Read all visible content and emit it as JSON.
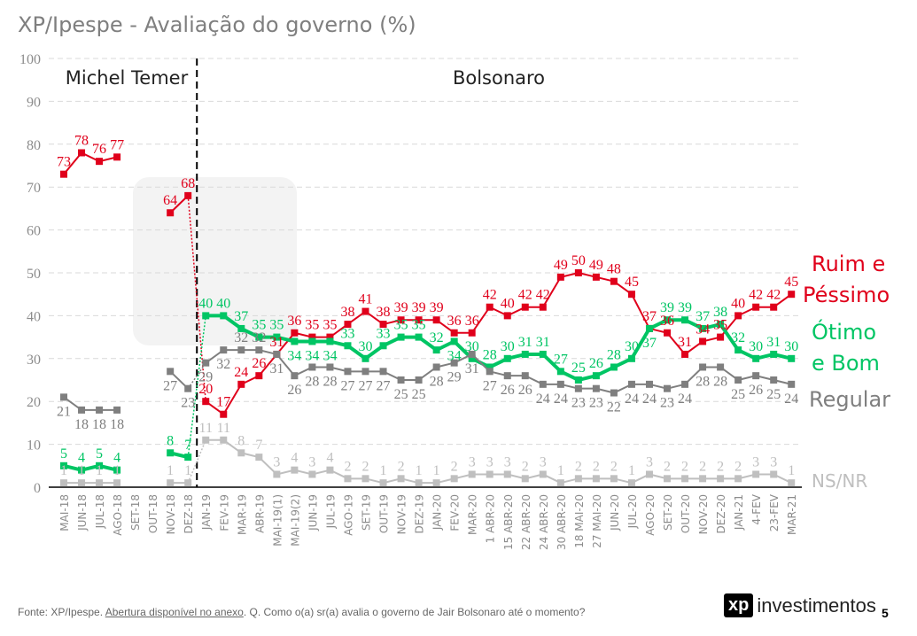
{
  "title": "XP/Ipespe - Avaliação do governo (%)",
  "footer": {
    "source": "Fonte: XP/Ipespe.",
    "link": "Abertura disponível no anexo",
    "question": ". Q. Como o(a) sr(a) avalia o governo de Jair Bolsonaro até o momento?"
  },
  "logo": {
    "mark": "xp",
    "text": "investimentos"
  },
  "watermark": "xp investimentos",
  "page_number": "5",
  "chart_data": {
    "type": "line",
    "ylim": [
      0,
      100
    ],
    "yticks": [
      0,
      10,
      20,
      30,
      40,
      50,
      60,
      70,
      80,
      90,
      100
    ],
    "grid": true,
    "legend_placement": "right",
    "annotations": [
      "Michel Temer",
      "Bolsonaro"
    ],
    "categories": [
      "MAI-18",
      "JUN-18",
      "JUL-18",
      "AGO-18",
      "SET-18",
      "OUT-18",
      "NOV-18",
      "DEZ-18",
      "JAN-19",
      "FEV-19",
      "MAR-19",
      "ABR-19",
      "MAI-19(1)",
      "MAI-19(2)",
      "JUN-19",
      "JUL-19",
      "AGO-19",
      "SET-19",
      "OUT-19",
      "NOV-19",
      "DEZ-19",
      "JAN-20",
      "FEV-20",
      "MAR-20",
      "1 ABR-20",
      "15 ABR-20",
      "22 ABR-20",
      "24 ABR-20",
      "30 ABR-20",
      "18 MAI-20",
      "27 MAI-20",
      "JUN-20",
      "JUL-20",
      "AGO-20",
      "SET-20",
      "OUT-20",
      "NOV-20",
      "DEZ-20",
      "JAN-21",
      "4-FEV",
      "23-FEV",
      "MAR-21"
    ],
    "series": [
      {
        "name": "Ruim e Péssimo",
        "color": "#e0001b",
        "values": [
          73,
          78,
          76,
          77,
          null,
          null,
          64,
          68,
          20,
          17,
          24,
          26,
          31,
          36,
          35,
          35,
          38,
          41,
          38,
          39,
          39,
          39,
          36,
          36,
          42,
          40,
          42,
          42,
          49,
          50,
          49,
          48,
          45,
          37,
          36,
          31,
          34,
          35,
          40,
          42,
          42,
          45
        ]
      },
      {
        "name": "Ótimo e Bom",
        "color": "#00c564",
        "values": [
          5,
          4,
          5,
          4,
          null,
          null,
          8,
          7,
          40,
          40,
          37,
          35,
          35,
          34,
          34,
          34,
          33,
          30,
          33,
          35,
          35,
          32,
          34,
          30,
          28,
          30,
          31,
          31,
          27,
          25,
          26,
          28,
          30,
          37,
          39,
          39,
          37,
          38,
          32,
          30,
          31,
          30
        ]
      },
      {
        "name": "Regular",
        "color": "#7f7f7f",
        "values": [
          21,
          18,
          18,
          18,
          null,
          null,
          27,
          23,
          29,
          32,
          32,
          32,
          31,
          26,
          28,
          28,
          27,
          27,
          27,
          25,
          25,
          28,
          29,
          31,
          27,
          26,
          26,
          24,
          24,
          23,
          23,
          22,
          24,
          24,
          23,
          24,
          28,
          28,
          25,
          26,
          25,
          24
        ]
      },
      {
        "name": "NS/NR",
        "color": "#bfbfbf",
        "values": [
          1,
          1,
          1,
          1,
          null,
          null,
          1,
          1,
          11,
          11,
          8,
          7,
          3,
          4,
          3,
          4,
          2,
          2,
          1,
          2,
          1,
          1,
          2,
          3,
          3,
          3,
          2,
          3,
          1,
          2,
          2,
          2,
          1,
          3,
          2,
          2,
          2,
          2,
          2,
          3,
          3,
          1
        ]
      }
    ]
  }
}
